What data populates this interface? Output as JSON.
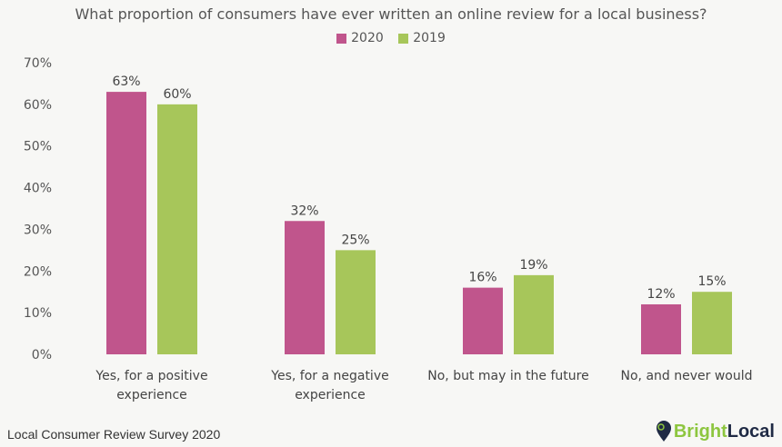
{
  "chart_data": {
    "type": "bar",
    "title": "What proportion of consumers have ever written an online review for a local business?",
    "categories": [
      [
        "Yes, for a positive",
        "experience"
      ],
      [
        "Yes, for a negative",
        "experience"
      ],
      [
        "No, but may in the future"
      ],
      [
        "No, and never would"
      ]
    ],
    "series": [
      {
        "name": "2020",
        "values": [
          63,
          32,
          16,
          12
        ],
        "color": "#c0558c"
      },
      {
        "name": "2019",
        "values": [
          60,
          25,
          19,
          15
        ],
        "color": "#a7c65a"
      }
    ],
    "ylim": [
      0,
      70
    ],
    "yticks": [
      0,
      10,
      20,
      30,
      40,
      50,
      60,
      70
    ],
    "ytick_format": "%",
    "grid": false,
    "legend": "top-center",
    "data_labels": true
  },
  "footer": {
    "source": "Local Consumer Review Survey 2020"
  },
  "logo": {
    "part1": "Bright",
    "part2": "Local",
    "color1": "#8dc63f",
    "color2": "#1f2a44"
  }
}
